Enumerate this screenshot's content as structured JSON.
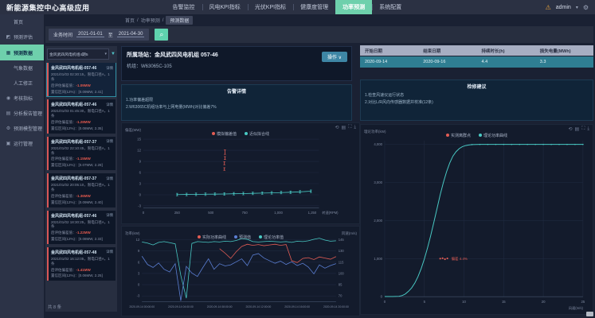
{
  "app": {
    "title": "新能源集控中心高级应用"
  },
  "header": {
    "nav": [
      {
        "label": "告警监控"
      },
      {
        "label": "风电KPI指标"
      },
      {
        "label": "光伏KPI指标"
      },
      {
        "label": "健康度管理"
      },
      {
        "label": "功率预测"
      },
      {
        "label": "系统配置"
      }
    ],
    "alert_icon": "⚠",
    "user": "admin",
    "caret": "▾",
    "gear_icon": "⚙"
  },
  "breadcrumb": {
    "items": [
      "首页",
      "功率预测",
      "预测数据"
    ],
    "separator": "/"
  },
  "filter": {
    "label": "业务时间",
    "start": "2021-01-01",
    "to_label": "至",
    "end": "2021-04-30",
    "search_icon": "⌕"
  },
  "sidebar": {
    "items": [
      {
        "icon": "",
        "label": "首页"
      },
      {
        "icon": "◩",
        "label": "预测评估"
      },
      {
        "icon": "▦",
        "label": "预测数据"
      },
      {
        "icon": "",
        "label": "气象数据"
      },
      {
        "icon": "",
        "label": "人工修正"
      },
      {
        "icon": "◉",
        "label": "考核指标"
      },
      {
        "icon": "▤",
        "label": "分析报告管理"
      },
      {
        "icon": "⚙",
        "label": "预测模型管理"
      },
      {
        "icon": "▣",
        "label": "运行管理"
      }
    ]
  },
  "list": {
    "dropdown_value": "金风武四风电机组4期5",
    "dropdown_caret": "▾",
    "filter_icon": "▼",
    "detail_label": "详情",
    "total": "共 8 条",
    "cards": [
      {
        "title": "金风武四风电机组-057-46",
        "time_line": "2021/01/03 02:30:15，限电口径A，1条",
        "deviation_label": "后评估偏差值：",
        "deviation_value": "-1.09MW",
        "range_line": "置信区间(12%)：[0.09MW, 2.41]"
      },
      {
        "title": "金风武四风电机组-057-46",
        "time_line": "2021/01/03 01:45:30，限电口径A，1条",
        "deviation_label": "后评估偏差值：",
        "deviation_value": "-1.28MW",
        "range_line": "置信区间(12%)：[0.08MW, 2.35]"
      },
      {
        "title": "金风武四风电机组-057-37",
        "time_line": "2021/01/02 22:10:45，限电口径A，1条",
        "deviation_label": "后评估偏差值：",
        "deviation_value": "-1.15MW",
        "range_line": "置信区间(12%)：[0.07MW, 2.28]"
      },
      {
        "title": "金风武四风电机组-057-37",
        "time_line": "2021/01/02 20:05:10，限电口径A，1条",
        "deviation_label": "后评估偏差值：",
        "deviation_value": "-1.36MW",
        "range_line": "置信区间(12%)：[0.09MW, 2.40]"
      },
      {
        "title": "金风武四风电机组-057-46",
        "time_line": "2021/01/02 18:30:25，限电口径A，1条",
        "deviation_label": "后评估偏差值：",
        "deviation_value": "-1.22MW",
        "range_line": "置信区间(12%)：[0.08MW, 2.33]"
      },
      {
        "title": "金风武四风电机组-057-48",
        "time_line": "2021/01/02 16:12:05，限电口径A，1条",
        "deviation_label": "后评估偏差值：",
        "deviation_value": "-1.41MW",
        "range_line": "置信区间(12%)：[0.06MW, 2.25]"
      }
    ]
  },
  "main": {
    "title": "所属场站：金风武四风电机组 057-46",
    "subtitle": "机组：W63065C-105",
    "action_button": "操作 ∨",
    "alarm_panel": {
      "title": "告警详情",
      "lines": [
        "1.功率偏差超限",
        "2.W63065C机组功率与上网电量(MWh)对比偏差7%"
      ]
    },
    "advice_panel": {
      "title": "检修建议",
      "lines": [
        "1.检查风速仪运行状态",
        "2.对比L/R风向传感器数据并校准(12条)"
      ]
    },
    "table": {
      "headers": [
        "开始日期",
        "结束日期",
        "持续时长(h)",
        "损失电量(MWh)"
      ],
      "rows": [
        [
          "2020-09-14",
          "2020-09-16",
          "4.4",
          "3.3"
        ]
      ]
    },
    "toolbox": [
      "⟲",
      "▤",
      "⛶",
      "⤓"
    ]
  },
  "chart_data": [
    {
      "id": "deviation",
      "type": "line",
      "title": "偏差分布",
      "ylabel": "偏差(MW)",
      "xlabel": "转速(RPM)",
      "ylim": [
        -3.5,
        15.5
      ],
      "yticks": [
        15,
        12,
        9,
        6,
        3,
        0,
        -3
      ],
      "xlim": [
        0,
        1300
      ],
      "xtick_values": [
        0,
        250,
        500,
        750,
        1000,
        1250
      ],
      "xticks": [
        "0",
        "250",
        "500",
        "750",
        "1,000",
        "1,250"
      ],
      "legend": [
        {
          "name": "模拟偏差值",
          "color": "#e25c54"
        },
        {
          "name": "近似拟合线",
          "color": "#49c9c4"
        }
      ],
      "fit_series": {
        "name": "近似拟合线",
        "color": "#49c9c4",
        "error": 0.35,
        "points": [
          [
            250,
            0.05
          ],
          [
            320,
            0.08
          ],
          [
            390,
            0.12
          ],
          [
            460,
            0.15
          ],
          [
            530,
            0.18
          ],
          [
            600,
            0.22
          ],
          [
            670,
            0.28
          ],
          [
            740,
            0.33
          ],
          [
            810,
            0.38
          ],
          [
            880,
            0.45
          ],
          [
            950,
            0.52
          ],
          [
            1020,
            0.6
          ],
          [
            1090,
            0.68
          ],
          [
            1160,
            0.78
          ],
          [
            1240,
            0.95
          ]
        ]
      },
      "outlier_series": {
        "name": "模拟偏差值",
        "color": "#e25c54",
        "segments": [
          [
            600,
            6.6,
            7.3
          ],
          [
            600,
            8.1,
            8.9
          ],
          [
            604,
            9.5,
            10.3
          ],
          [
            604,
            10.9,
            12.1
          ]
        ]
      }
    },
    {
      "id": "trend",
      "type": "line",
      "title": "功率走势",
      "ylabel": "功率(kW)",
      "ylabel_right": "风速(m/s)",
      "ylim": [
        -4.5,
        13
      ],
      "yticks": [
        12,
        9,
        6,
        3,
        0,
        -3
      ],
      "yticks_right": [
        "145",
        "130",
        "115",
        "100",
        "85",
        "70"
      ],
      "xticks": [
        "2020-09-14 00:00:00",
        "2020-09-14 04:00:00",
        "2020-09-14 08:00:00",
        "2020-09-14 12:00:00",
        "2020-09-14 16:00:00",
        "2020-09-14 20:00:00"
      ],
      "legend": [
        {
          "name": "实际功率曲线",
          "color": "#e25c54"
        },
        {
          "name": "预测值",
          "color": "#5b7fd4"
        },
        {
          "name": "理论功率值",
          "color": "#49c9c4"
        }
      ],
      "series": [
        {
          "name": "理论功率值",
          "color": "#49c9c4",
          "values": [
            11.4,
            11.1,
            10.6,
            11.3,
            11.5,
            11.2,
            10.9,
            2.5,
            -3.6,
            11.0,
            11.5,
            11.4,
            11.3,
            11.5,
            11.4,
            11.6,
            11.5,
            11.8,
            12.3,
            12.1,
            11.5,
            11.4,
            11.5,
            11.6,
            11.5,
            11.4,
            11.5,
            11.3,
            11.6,
            11.5,
            11.7,
            12.1,
            12.4,
            11.9,
            11.6,
            11.7
          ]
        },
        {
          "name": "预测值",
          "color": "#5b7fd4",
          "values": [
            7.6,
            5.4,
            4.6,
            5.8,
            4.1,
            3.4,
            5.6,
            -4.3,
            4.9,
            3.1,
            2.2,
            4.6,
            6.9,
            4.1,
            5.6,
            5.0,
            5.3,
            6.1,
            6.9,
            5.1,
            7.9,
            8.3,
            7.1,
            6.4,
            5.7,
            6.3,
            5.4,
            6.1,
            5.1,
            5.7,
            4.7,
            2.9,
            5.3,
            4.4,
            5.1,
            5.6
          ]
        },
        {
          "name": "实际功率曲线",
          "color": "#e25c54",
          "values": [
            null,
            null,
            null,
            null,
            null,
            null,
            null,
            null,
            null,
            null,
            null,
            null,
            null,
            null,
            9.6,
            8.4,
            7.0,
            8.8,
            10.2,
            10.8,
            10.5,
            10.7,
            10.4,
            10.6,
            10.8,
            10.5,
            10.7,
            6.4,
            5.9,
            7.0,
            7.2,
            6.7,
            7.4,
            7.1,
            6.8,
            7.5
          ]
        }
      ]
    },
    {
      "id": "power_curve",
      "type": "line",
      "title": "理论功率曲线",
      "ylabel": "理论功率(kW)",
      "xlabel": "风速(m/s)",
      "ylim": [
        0,
        4100
      ],
      "ytick_values": [
        4000,
        3000,
        2000,
        1000,
        0
      ],
      "yticks": [
        "4,000",
        "3,000",
        "2,000",
        "1,000",
        "0"
      ],
      "xlim": [
        0,
        25
      ],
      "xticks": [
        0,
        5,
        10,
        15,
        20,
        25
      ],
      "legend": [
        {
          "name": "实测离群点",
          "color": "#e25c54"
        },
        {
          "name": "理论功率曲线",
          "color": "#49c9c4"
        }
      ],
      "curve": [
        [
          0,
          5
        ],
        [
          1,
          5
        ],
        [
          1.8,
          10
        ],
        [
          2.2,
          30
        ],
        [
          2.6,
          70
        ],
        [
          3,
          140
        ],
        [
          3.4,
          230
        ],
        [
          3.8,
          360
        ],
        [
          4.2,
          530
        ],
        [
          4.6,
          740
        ],
        [
          5,
          990
        ],
        [
          5.4,
          1280
        ],
        [
          5.8,
          1600
        ],
        [
          6.2,
          1950
        ],
        [
          6.6,
          2320
        ],
        [
          7,
          2680
        ],
        [
          7.4,
          3000
        ],
        [
          7.8,
          3280
        ],
        [
          8.2,
          3510
        ],
        [
          8.6,
          3690
        ],
        [
          9,
          3810
        ],
        [
          9.4,
          3890
        ],
        [
          9.8,
          3940
        ],
        [
          10.2,
          3970
        ],
        [
          10.6,
          3985
        ],
        [
          11,
          3995
        ],
        [
          12,
          4000
        ],
        [
          13,
          4000
        ],
        [
          14,
          4000
        ],
        [
          15,
          4000
        ],
        [
          16,
          4000
        ],
        [
          17,
          4000
        ],
        [
          18,
          4000
        ],
        [
          19,
          4000
        ],
        [
          20,
          4000
        ],
        [
          21,
          4000
        ],
        [
          22,
          4000
        ],
        [
          23,
          4000
        ],
        [
          24,
          4000
        ],
        [
          25,
          4000
        ]
      ],
      "scatter": [
        [
          7.0,
          1000
        ],
        [
          7.3,
          1010
        ],
        [
          7.6,
          985
        ],
        [
          7.9,
          1005
        ]
      ],
      "annotation": {
        "text": "偏差 4.4%",
        "x": 8.4,
        "y": 1000,
        "color": "#e25c54"
      }
    }
  ]
}
